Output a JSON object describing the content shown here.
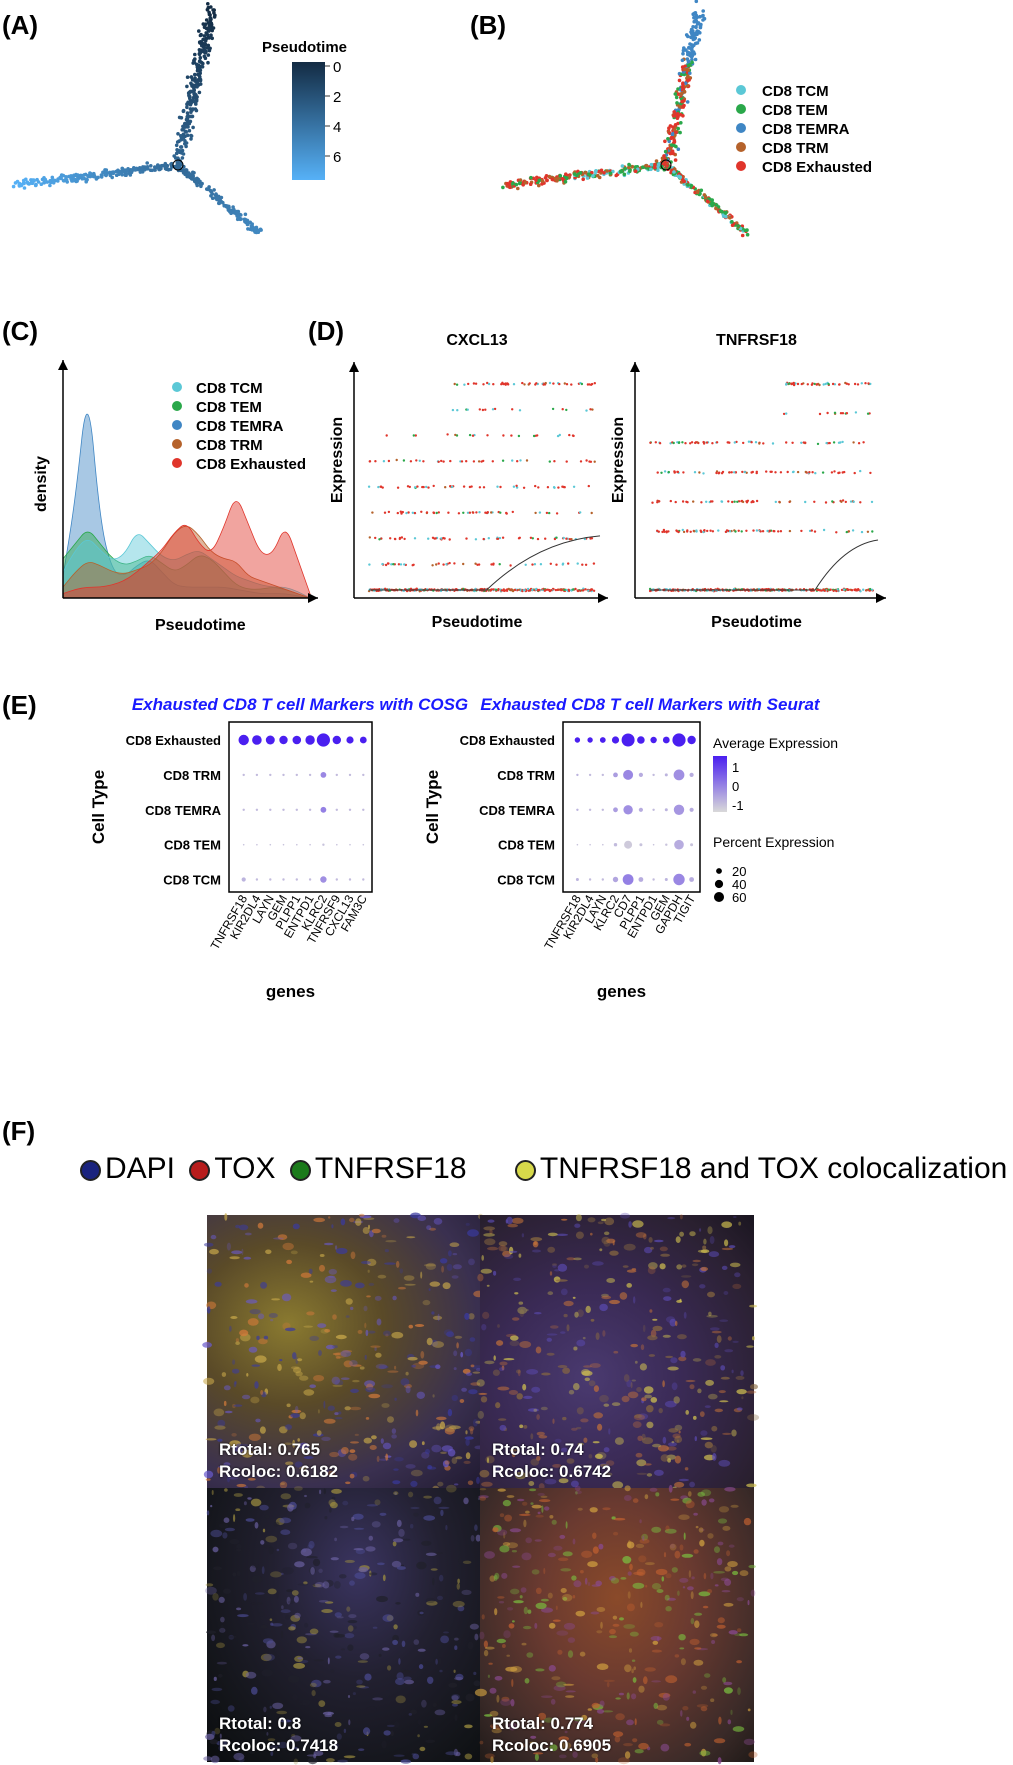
{
  "panels": {
    "A": "(A)",
    "B": "(B)",
    "C": "(C)",
    "D": "(D)",
    "E": "(E)",
    "F": "(F)"
  },
  "panel_a": {
    "legend_title": "Pseudotime",
    "colorbar_ticks": [
      "0",
      "2",
      "4",
      "6"
    ],
    "colors": {
      "low": "#56b1f7",
      "high": "#132b43"
    }
  },
  "cell_types": [
    "CD8 TCM",
    "CD8 TEM",
    "CD8 TEMRA",
    "CD8 TRM",
    "CD8 Exhausted"
  ],
  "cell_colors": [
    "#5bc8d6",
    "#2aa84a",
    "#3f86c4",
    "#b5622b",
    "#e0352b"
  ],
  "chart_data": [
    {
      "id": "C",
      "type": "area",
      "xlabel": "Pseudotime",
      "ylabel": "density",
      "x": [
        0,
        0.05,
        0.1,
        0.15,
        0.2,
        0.25,
        0.3,
        0.35,
        0.4,
        0.45,
        0.5,
        0.55,
        0.6,
        0.65,
        0.7,
        0.75,
        0.8,
        0.85,
        0.9,
        0.95,
        1.0
      ],
      "series": [
        {
          "name": "CD8 TEMRA",
          "values": [
            0.1,
            0.45,
            0.99,
            0.35,
            0.12,
            0.1,
            0.15,
            0.18,
            0.12,
            0.06,
            0.05,
            0.05,
            0.05,
            0.05,
            0.04,
            0.03,
            0.02,
            0.02,
            0.02,
            0.01,
            0.0
          ]
        },
        {
          "name": "CD8 TEM",
          "values": [
            0.18,
            0.25,
            0.32,
            0.25,
            0.18,
            0.15,
            0.17,
            0.2,
            0.16,
            0.12,
            0.15,
            0.2,
            0.18,
            0.12,
            0.06,
            0.04,
            0.04,
            0.05,
            0.04,
            0.02,
            0.0
          ]
        },
        {
          "name": "CD8 TCM",
          "values": [
            0.12,
            0.22,
            0.28,
            0.22,
            0.17,
            0.2,
            0.31,
            0.25,
            0.19,
            0.17,
            0.2,
            0.22,
            0.18,
            0.14,
            0.1,
            0.08,
            0.06,
            0.05,
            0.05,
            0.03,
            0.0
          ]
        },
        {
          "name": "CD8 TRM",
          "values": [
            0.05,
            0.12,
            0.17,
            0.15,
            0.12,
            0.11,
            0.13,
            0.15,
            0.21,
            0.3,
            0.34,
            0.29,
            0.21,
            0.18,
            0.17,
            0.1,
            0.08,
            0.06,
            0.04,
            0.02,
            0.0
          ]
        },
        {
          "name": "CD8 Exhausted",
          "values": [
            0.02,
            0.04,
            0.05,
            0.05,
            0.06,
            0.08,
            0.12,
            0.17,
            0.22,
            0.3,
            0.35,
            0.25,
            0.2,
            0.32,
            0.48,
            0.34,
            0.2,
            0.2,
            0.34,
            0.18,
            0.02
          ]
        }
      ]
    },
    {
      "id": "D1",
      "type": "scatter",
      "title": "CXCL13",
      "xlabel": "Pseudotime",
      "ylabel": "Expression",
      "levels": [
        0,
        1,
        2,
        3,
        4,
        5,
        6,
        7,
        8
      ],
      "fit_start": 0.52,
      "fit_end_level": 2.1
    },
    {
      "id": "D2",
      "type": "scatter",
      "title": "TNFRSF18",
      "xlabel": "Pseudotime",
      "ylabel": "Expression",
      "levels": [
        0,
        2,
        3,
        4,
        5,
        6,
        7
      ],
      "fit_start": 0.74,
      "fit_end_level": 1.7
    },
    {
      "id": "E1",
      "type": "scatter",
      "title": "Exhausted CD8 T cell Markers with COSG",
      "xlabel": "genes",
      "ylabel": "Cell Type",
      "genes": [
        "TNFRSF18",
        "KIR2DL4",
        "LAYN",
        "GEM",
        "PLPP1",
        "ENTPD1",
        "KLRC2",
        "TNFRSF9",
        "CXCL13",
        "FAM3C"
      ],
      "rows": [
        "CD8 Exhausted",
        "CD8 TRM",
        "CD8 TEMRA",
        "CD8 TEM",
        "CD8 TCM"
      ],
      "avg_expression": [
        [
          1.5,
          1.5,
          1.5,
          1.5,
          1.5,
          1.5,
          1.5,
          1.5,
          1.5,
          1.5
        ],
        [
          -0.6,
          -0.6,
          -0.6,
          -0.6,
          -0.6,
          -0.6,
          0.1,
          -0.6,
          -0.6,
          -0.6
        ],
        [
          -0.6,
          -0.6,
          -0.6,
          -0.6,
          -0.6,
          -0.6,
          0.2,
          -0.6,
          -0.6,
          -0.6
        ],
        [
          -0.7,
          -0.7,
          -0.7,
          -0.7,
          -0.7,
          -0.7,
          -0.7,
          -0.7,
          -0.7,
          -0.7
        ],
        [
          -0.5,
          -0.6,
          -0.6,
          -0.6,
          -0.6,
          -0.6,
          0.0,
          -0.6,
          -0.6,
          -0.6
        ]
      ],
      "pct_expression": [
        [
          38,
          32,
          28,
          24,
          26,
          30,
          60,
          24,
          18,
          16
        ],
        [
          2,
          2,
          2,
          2,
          2,
          2,
          12,
          2,
          2,
          2
        ],
        [
          2,
          2,
          2,
          2,
          2,
          2,
          12,
          2,
          2,
          2
        ],
        [
          1,
          1,
          1,
          1,
          1,
          1,
          2,
          1,
          1,
          1
        ],
        [
          6,
          2,
          2,
          2,
          2,
          2,
          14,
          2,
          2,
          2
        ]
      ]
    },
    {
      "id": "E2",
      "type": "scatter",
      "title": "Exhausted CD8 T cell Markers with Seurat",
      "xlabel": "genes",
      "ylabel": "Cell Type",
      "genes": [
        "TNFRSF18",
        "KIR2DL4",
        "LAYN",
        "KLRC2",
        "CD7",
        "PLPP1",
        "ENTPD1",
        "GEM",
        "GAPDH",
        "TIGIT"
      ],
      "rows": [
        "CD8 Exhausted",
        "CD8 TRM",
        "CD8 TEMRA",
        "CD8 TEM",
        "CD8 TCM"
      ],
      "avg_expression": [
        [
          1.5,
          1.5,
          1.5,
          1.5,
          1.5,
          1.5,
          1.5,
          1.5,
          1.5,
          1.5
        ],
        [
          -0.5,
          -0.6,
          -0.6,
          -0.2,
          0.1,
          -0.4,
          -0.6,
          -0.5,
          0.0,
          -0.4
        ],
        [
          -0.5,
          -0.6,
          -0.6,
          -0.2,
          0.0,
          -0.4,
          -0.6,
          -0.5,
          -0.1,
          -0.4
        ],
        [
          -0.7,
          -0.7,
          -0.7,
          -0.6,
          -0.8,
          -0.7,
          -0.7,
          -0.7,
          -0.4,
          -0.7
        ],
        [
          -0.5,
          -0.6,
          -0.6,
          -0.3,
          0.2,
          -0.4,
          -0.6,
          -0.5,
          0.1,
          -0.4
        ]
      ],
      "pct_expression": [
        [
          10,
          10,
          12,
          18,
          58,
          20,
          14,
          16,
          60,
          24
        ],
        [
          2,
          2,
          2,
          8,
          35,
          6,
          2,
          3,
          40,
          6
        ],
        [
          2,
          2,
          2,
          8,
          30,
          6,
          2,
          3,
          38,
          6
        ],
        [
          1,
          1,
          1,
          4,
          22,
          3,
          1,
          2,
          32,
          3
        ],
        [
          3,
          2,
          2,
          10,
          40,
          8,
          2,
          3,
          45,
          8
        ]
      ],
      "legend": {
        "color_title": "Average Expression",
        "color_ticks": [
          "1",
          "0",
          "-1"
        ],
        "size_title": "Percent Expression",
        "size_ticks": [
          "20",
          "40",
          "60"
        ],
        "color_low": "#d9d9d9",
        "color_high": "#4a1ff0"
      }
    }
  ],
  "panel_f": {
    "legend": [
      {
        "label": "DAPI",
        "color": "#1a237e"
      },
      {
        "label": "TOX",
        "color": "#b71c1c"
      },
      {
        "label": "TNFRSF18",
        "color": "#1b7a1b"
      },
      {
        "label": "TNFRSF18 and TOX colocalization",
        "color": "#d7d94a"
      }
    ],
    "images": [
      {
        "rtotal": "Rtotal: 0.765",
        "rcoloc": "Rcoloc: 0.6182"
      },
      {
        "rtotal": "Rtotal: 0.74",
        "rcoloc": "Rcoloc: 0.6742"
      },
      {
        "rtotal": "Rtotal: 0.8",
        "rcoloc": "Rcoloc: 0.7418"
      },
      {
        "rtotal": "Rtotal: 0.774",
        "rcoloc": "Rcoloc: 0.6905"
      }
    ]
  }
}
